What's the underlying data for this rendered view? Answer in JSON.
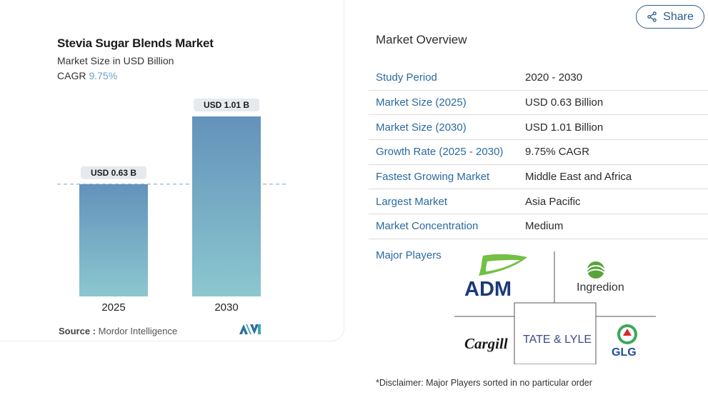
{
  "chart": {
    "title": "Stevia Sugar Blends Market",
    "subtitle": "Market Size in USD Billion",
    "cagr_label": "CAGR",
    "cagr_value": "9.75%",
    "source_label": "Source :",
    "source_value": "Mordor Intelligence"
  },
  "chart_data": {
    "type": "bar",
    "categories": [
      "2025",
      "2030"
    ],
    "values": [
      0.63,
      1.01
    ],
    "data_labels": [
      "USD 0.63 B",
      "USD 1.01 B"
    ],
    "title": "Stevia Sugar Blends Market",
    "ylabel": "",
    "xlabel": "",
    "ylim": [
      0,
      1.01
    ],
    "grid": false,
    "reference_line_value": 0.63,
    "colors": {
      "bar_top": "#6392bb",
      "bar_bottom": "#8cc7cf",
      "label_bg": "#e6eaee",
      "ref_line": "#8aaecb"
    }
  },
  "share": {
    "label": "Share",
    "icon": "share-icon"
  },
  "overview": {
    "title": "Market Overview",
    "rows": [
      {
        "key": "Study Period",
        "value": "2020 - 2030"
      },
      {
        "key": "Market Size (2025)",
        "value": "USD 0.63 Billion"
      },
      {
        "key": "Market Size (2030)",
        "value": "USD 1.01 Billion"
      },
      {
        "key": "Growth Rate (2025 - 2030)",
        "value": "9.75% CAGR"
      },
      {
        "key": "Fastest Growing Market",
        "value": "Middle East and Africa"
      },
      {
        "key": "Largest Market",
        "value": "Asia Pacific"
      },
      {
        "key": "Market Concentration",
        "value": "Medium"
      }
    ],
    "players_label": "Major Players",
    "players": [
      "ADM",
      "Ingredion",
      "Cargill",
      "TATE & LYLE",
      "GLG"
    ],
    "disclaimer": "*Disclaimer: Major Players sorted in no particular order"
  }
}
